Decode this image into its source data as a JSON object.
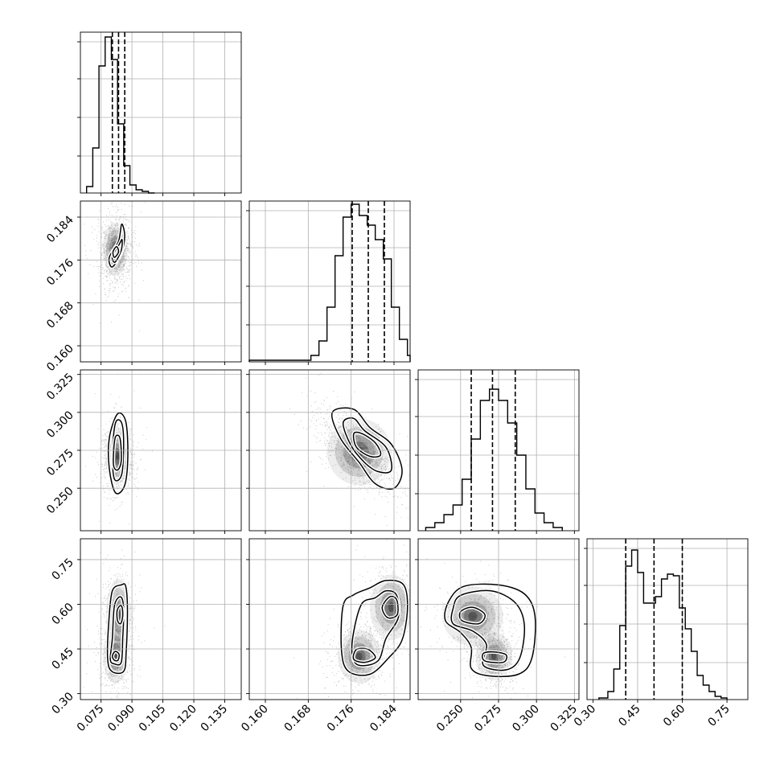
{
  "chart_data": {
    "type": "corner",
    "title": "",
    "grid": true,
    "colors": {
      "line": "#000000",
      "grid": "#b0b0b0",
      "scatter": "#000000"
    },
    "parameters": [
      {
        "xlim": [
          0.065,
          0.143
        ],
        "ticks": [
          0.075,
          0.09,
          0.105,
          0.12,
          0.135
        ],
        "tick_labels": [
          "0.075",
          "0.090",
          "0.105",
          "0.120",
          "0.135"
        ],
        "quantiles": [
          0.0805,
          0.0835,
          0.0865
        ],
        "hist": {
          "edges": [
            0.068,
            0.071,
            0.074,
            0.077,
            0.08,
            0.083,
            0.086,
            0.089,
            0.092,
            0.095,
            0.098,
            0.101
          ],
          "counts": [
            0.04,
            0.28,
            0.79,
            0.97,
            0.83,
            0.43,
            0.17,
            0.05,
            0.02,
            0.01,
            0.0
          ]
        }
      },
      {
        "xlim": [
          0.157,
          0.187
        ],
        "ticks": [
          0.16,
          0.168,
          0.176,
          0.184
        ],
        "tick_labels": [
          "0.160",
          "0.168",
          "0.176",
          "0.184"
        ],
        "quantiles": [
          0.1762,
          0.1792,
          0.1822
        ],
        "hist": {
          "edges": [
            0.157,
            0.1685,
            0.17,
            0.1715,
            0.173,
            0.1745,
            0.176,
            0.1775,
            0.179,
            0.1805,
            0.182,
            0.1835,
            0.185,
            0.1865,
            0.187
          ],
          "counts": [
            0.01,
            0.04,
            0.13,
            0.34,
            0.66,
            0.9,
            0.98,
            0.91,
            0.85,
            0.76,
            0.64,
            0.34,
            0.14,
            0.04
          ]
        }
      },
      {
        "xlim": [
          0.222,
          0.328
        ],
        "ticks": [
          0.25,
          0.275,
          0.3,
          0.325
        ],
        "tick_labels": [
          "0.250",
          "0.275",
          "0.300",
          "0.325"
        ],
        "quantiles": [
          0.257,
          0.271,
          0.286
        ],
        "hist": {
          "edges": [
            0.227,
            0.233,
            0.239,
            0.245,
            0.251,
            0.257,
            0.263,
            0.269,
            0.275,
            0.281,
            0.287,
            0.293,
            0.299,
            0.305,
            0.311,
            0.317
          ],
          "counts": [
            0.02,
            0.05,
            0.1,
            0.16,
            0.32,
            0.57,
            0.81,
            0.88,
            0.81,
            0.67,
            0.47,
            0.26,
            0.11,
            0.05,
            0.02
          ]
        }
      },
      {
        "xlim": [
          0.28,
          0.82
        ],
        "ticks": [
          0.3,
          0.45,
          0.6,
          0.75
        ],
        "tick_labels": [
          "0.30",
          "0.45",
          "0.60",
          "0.75"
        ],
        "quantiles": [
          0.41,
          0.505,
          0.6
        ],
        "hist": {
          "edges": [
            0.32,
            0.35,
            0.37,
            0.39,
            0.41,
            0.43,
            0.45,
            0.47,
            0.49,
            0.51,
            0.53,
            0.55,
            0.57,
            0.59,
            0.61,
            0.63,
            0.65,
            0.67,
            0.69,
            0.71,
            0.73,
            0.75
          ],
          "counts": [
            0.01,
            0.05,
            0.19,
            0.46,
            0.83,
            0.93,
            0.79,
            0.6,
            0.6,
            0.64,
            0.75,
            0.78,
            0.77,
            0.57,
            0.44,
            0.3,
            0.15,
            0.09,
            0.05,
            0.02,
            0.01
          ]
        }
      }
    ],
    "pairs": [
      {
        "row": 1,
        "col": 0,
        "rho": 0.1,
        "contours": [
          [
            [
              0.0835,
              0.1795
            ],
            [
              0.079,
              0.1765
            ],
            [
              0.0805,
              0.1747
            ],
            [
              0.085,
              0.1775
            ],
            [
              0.0865,
              0.1805
            ],
            [
              0.085,
              0.1827
            ]
          ],
          [
            [
              0.0838,
              0.1789
            ],
            [
              0.0805,
              0.1767
            ],
            [
              0.0818,
              0.1756
            ],
            [
              0.0848,
              0.1778
            ],
            [
              0.0852,
              0.1798
            ]
          ],
          [
            [
              0.0825,
              0.1785
            ],
            [
              0.0808,
              0.1775
            ],
            [
              0.0815,
              0.1765
            ],
            [
              0.0835,
              0.1775
            ]
          ]
        ],
        "peaks": [
          [
            0.082,
            0.178,
            0.003,
            0.0025,
            1.0
          ]
        ]
      },
      {
        "row": 2,
        "col": 0,
        "rho": 0.0,
        "contours": [
          [
            [
              0.083,
              0.299
            ],
            [
              0.079,
              0.283
            ],
            [
              0.079,
              0.263
            ],
            [
              0.082,
              0.247
            ],
            [
              0.0865,
              0.252
            ],
            [
              0.088,
              0.272
            ],
            [
              0.087,
              0.294
            ]
          ],
          [
            [
              0.082,
              0.293
            ],
            [
              0.0805,
              0.273
            ],
            [
              0.0815,
              0.256
            ],
            [
              0.085,
              0.259
            ],
            [
              0.086,
              0.279
            ],
            [
              0.085,
              0.293
            ]
          ],
          [
            [
              0.0818,
              0.283
            ],
            [
              0.081,
              0.266
            ],
            [
              0.083,
              0.262
            ],
            [
              0.0848,
              0.268
            ],
            [
              0.0842,
              0.283
            ]
          ]
        ],
        "peaks": [
          [
            0.083,
            0.271,
            0.003,
            0.009,
            1.0
          ]
        ]
      },
      {
        "row": 2,
        "col": 1,
        "rho": -0.65,
        "contours": [
          [
            [
              0.1725,
              0.3
            ],
            [
              0.174,
              0.283
            ],
            [
              0.1775,
              0.267
            ],
            [
              0.1805,
              0.253
            ],
            [
              0.184,
              0.25
            ],
            [
              0.1855,
              0.262
            ],
            [
              0.1835,
              0.279
            ],
            [
              0.1795,
              0.29
            ],
            [
              0.1765,
              0.302
            ]
          ],
          [
            [
              0.1745,
              0.293
            ],
            [
              0.176,
              0.278
            ],
            [
              0.1785,
              0.267
            ],
            [
              0.181,
              0.261
            ],
            [
              0.1835,
              0.262
            ],
            [
              0.1825,
              0.277
            ],
            [
              0.1785,
              0.288
            ],
            [
              0.1765,
              0.296
            ]
          ],
          [
            [
              0.1765,
              0.286
            ],
            [
              0.177,
              0.277
            ],
            [
              0.1795,
              0.271
            ],
            [
              0.1815,
              0.272
            ],
            [
              0.1805,
              0.28
            ],
            [
              0.178,
              0.286
            ]
          ]
        ],
        "peaks": [
          [
            0.1775,
            0.274,
            0.003,
            0.011,
            1.0
          ]
        ]
      },
      {
        "row": 3,
        "col": 0,
        "rho": 0.0,
        "contours": [
          [
            [
              0.0848,
              0.665
            ],
            [
              0.0805,
              0.645
            ],
            [
              0.0788,
              0.545
            ],
            [
              0.0782,
              0.42
            ],
            [
              0.0802,
              0.375
            ],
            [
              0.086,
              0.375
            ],
            [
              0.0872,
              0.44
            ],
            [
              0.0878,
              0.58
            ],
            [
              0.087,
              0.66
            ]
          ],
          [
            [
              0.0845,
              0.625
            ],
            [
              0.0815,
              0.595
            ],
            [
              0.0805,
              0.485
            ],
            [
              0.0795,
              0.415
            ],
            [
              0.0815,
              0.4
            ],
            [
              0.0848,
              0.405
            ],
            [
              0.0855,
              0.485
            ],
            [
              0.086,
              0.585
            ]
          ],
          [
            [
              0.0842,
              0.595
            ],
            [
              0.0828,
              0.578
            ],
            [
              0.083,
              0.545
            ],
            [
              0.0845,
              0.535
            ],
            [
              0.0855,
              0.56
            ],
            [
              0.0852,
              0.59
            ]
          ],
          [
            [
              0.0815,
              0.44
            ],
            [
              0.0805,
              0.425
            ],
            [
              0.0815,
              0.412
            ],
            [
              0.0832,
              0.412
            ],
            [
              0.0838,
              0.43
            ],
            [
              0.0828,
              0.44
            ]
          ]
        ],
        "peaks": [
          [
            0.082,
            0.425,
            0.003,
            0.045,
            1.0
          ],
          [
            0.0835,
            0.565,
            0.003,
            0.06,
            0.75
          ]
        ]
      },
      {
        "row": 3,
        "col": 1,
        "rho": 0.0,
        "contours": [
          [
            [
              0.1825,
              0.68
            ],
            [
              0.1795,
              0.655
            ],
            [
              0.1765,
              0.632
            ],
            [
              0.1745,
              0.595
            ],
            [
              0.1742,
              0.445
            ],
            [
              0.1755,
              0.375
            ],
            [
              0.1795,
              0.365
            ],
            [
              0.183,
              0.42
            ],
            [
              0.1855,
              0.48
            ],
            [
              0.1865,
              0.585
            ],
            [
              0.1858,
              0.665
            ]
          ],
          [
            [
              0.1825,
              0.645
            ],
            [
              0.1805,
              0.622
            ],
            [
              0.178,
              0.602
            ],
            [
              0.1765,
              0.51
            ],
            [
              0.1762,
              0.43
            ],
            [
              0.1775,
              0.395
            ],
            [
              0.181,
              0.41
            ],
            [
              0.1825,
              0.485
            ],
            [
              0.1848,
              0.555
            ],
            [
              0.1845,
              0.63
            ]
          ],
          [
            [
              0.1832,
              0.625
            ],
            [
              0.1818,
              0.59
            ],
            [
              0.1828,
              0.555
            ],
            [
              0.1846,
              0.565
            ],
            [
              0.1845,
              0.615
            ]
          ],
          [
            [
              0.1768,
              0.445
            ],
            [
              0.1765,
              0.415
            ],
            [
              0.1785,
              0.405
            ],
            [
              0.1805,
              0.42
            ],
            [
              0.1795,
              0.445
            ],
            [
              0.178,
              0.452
            ]
          ]
        ],
        "peaks": [
          [
            0.1775,
            0.425,
            0.002,
            0.045,
            1.0
          ],
          [
            0.1835,
            0.59,
            0.002,
            0.055,
            0.7
          ]
        ]
      },
      {
        "row": 3,
        "col": 2,
        "rho": 0.0,
        "contours": [
          [
            [
              0.242,
              0.608
            ],
            [
              0.24,
              0.545
            ],
            [
              0.25,
              0.505
            ],
            [
              0.257,
              0.455
            ],
            [
              0.257,
              0.385
            ],
            [
              0.268,
              0.36
            ],
            [
              0.288,
              0.365
            ],
            [
              0.297,
              0.42
            ],
            [
              0.299,
              0.56
            ],
            [
              0.292,
              0.635
            ],
            [
              0.275,
              0.665
            ],
            [
              0.252,
              0.66
            ]
          ],
          [
            [
              0.245,
              0.585
            ],
            [
              0.245,
              0.535
            ],
            [
              0.258,
              0.51
            ],
            [
              0.267,
              0.465
            ],
            [
              0.265,
              0.395
            ],
            [
              0.28,
              0.38
            ],
            [
              0.289,
              0.42
            ],
            [
              0.292,
              0.53
            ],
            [
              0.286,
              0.605
            ],
            [
              0.27,
              0.645
            ],
            [
              0.25,
              0.63
            ]
          ],
          [
            [
              0.25,
              0.575
            ],
            [
              0.251,
              0.545
            ],
            [
              0.262,
              0.535
            ],
            [
              0.266,
              0.565
            ],
            [
              0.258,
              0.59
            ]
          ],
          [
            [
              0.265,
              0.435
            ],
            [
              0.266,
              0.41
            ],
            [
              0.278,
              0.405
            ],
            [
              0.28,
              0.43
            ],
            [
              0.272,
              0.44
            ]
          ]
        ],
        "peaks": [
          [
            0.272,
            0.425,
            0.006,
            0.04,
            1.0
          ],
          [
            0.258,
            0.56,
            0.01,
            0.05,
            0.7
          ]
        ]
      }
    ]
  }
}
